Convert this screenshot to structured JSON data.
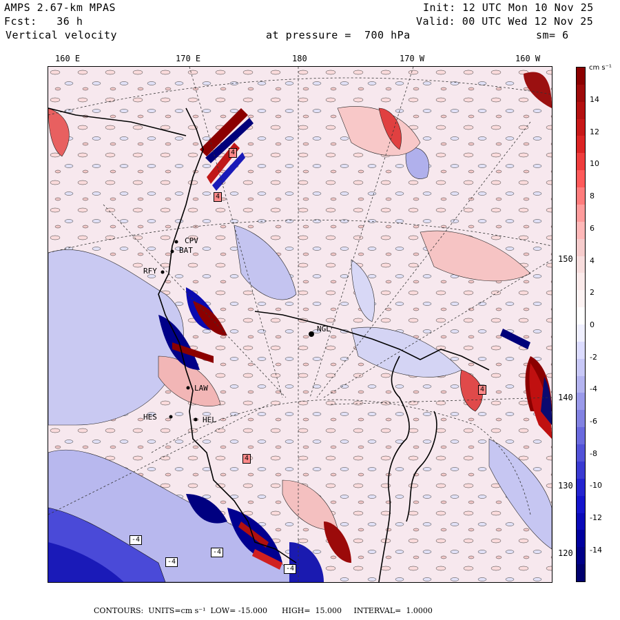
{
  "header": {
    "model": "AMPS 2.67-km MPAS",
    "init": "Init: 12 UTC Mon 10 Nov 25",
    "fcst": "Fcst:   36 h",
    "valid": "Valid: 00 UTC Wed 12 Nov 25",
    "field": "Vertical velocity",
    "pressure": "at pressure =  700 hPa",
    "smooth": "sm= 6"
  },
  "top_ticks": [
    "160 E",
    "170 E",
    "180",
    "170 W",
    "160 W"
  ],
  "right_ticks": [
    "150 W",
    "140 W",
    "130 W",
    "120 W"
  ],
  "stations": [
    "CPV",
    "BAT",
    "RFY",
    "NGL",
    "LAW",
    "HES",
    "HEL"
  ],
  "contour_labels": [
    "4",
    "4",
    "-4",
    "-4",
    "-4",
    "-4",
    "4",
    "4"
  ],
  "colorbar": {
    "unit": "cm s⁻¹",
    "ticks": [
      "14",
      "12",
      "10",
      "8",
      "6",
      "4",
      "2",
      "0",
      "-2",
      "-4",
      "-6",
      "-8",
      "-10",
      "-12",
      "-14"
    ],
    "colors": [
      "#8b0000",
      "#9e0a0a",
      "#b41010",
      "#c81818",
      "#dc2424",
      "#ef3d3d",
      "#ff5a5a",
      "#ff7c7c",
      "#ff9c9c",
      "#ffb8b8",
      "#f6cccc",
      "#f8dddd",
      "#fbeaea",
      "#fdf3f3",
      "#ffffff",
      "#f0f0ff",
      "#dcdcff",
      "#c8c8f7",
      "#b4b4f0",
      "#9a9aea",
      "#8282e2",
      "#6a6ade",
      "#5252d8",
      "#3a3ad2",
      "#2424d0",
      "#1414cc",
      "#0a0ab8",
      "#00009e",
      "#000088",
      "#00006e"
    ]
  },
  "footer": "CONTOURS:  UNITS=cm s⁻¹  LOW= -15.000      HIGH=  15.000     INTERVAL=  1.0000"
}
